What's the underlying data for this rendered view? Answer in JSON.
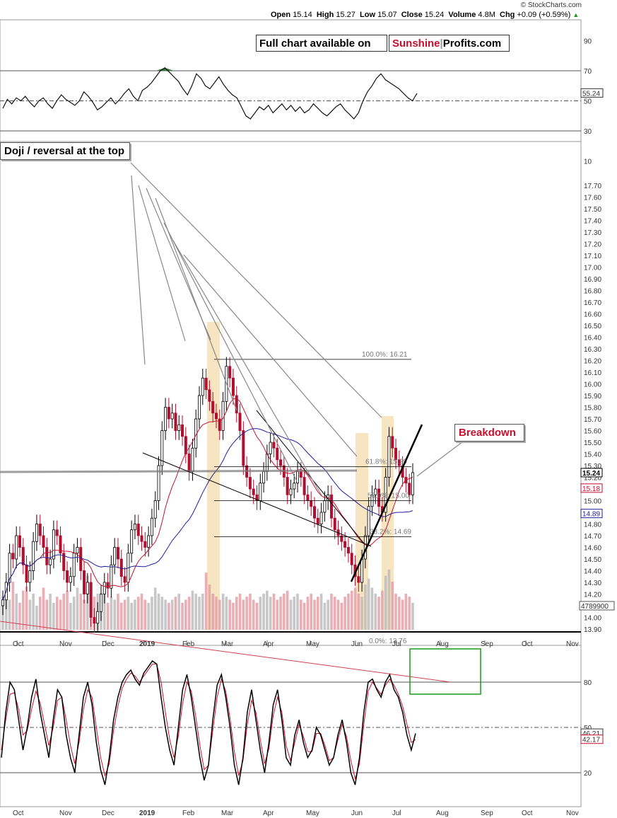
{
  "header": {
    "credit": "© StockCharts.com",
    "open_label": "Open",
    "open": "15.14",
    "high_label": "High",
    "high": "15.27",
    "low_label": "Low",
    "low": "15.07",
    "close_label": "Close",
    "close": "15.24",
    "volume_label": "Volume",
    "volume": "4.8M",
    "chg_label": "Chg",
    "chg": "+0.09 (+0.59%)"
  },
  "banner": {
    "part1": "Full chart available on",
    "part2a": "Sunshine",
    "part2b": "Profits.com"
  },
  "annotations": {
    "doji": "Doji / reversal at the top",
    "breakdown": "Breakdown"
  },
  "colors": {
    "red": "#c8102e",
    "blue": "#1f1fa0",
    "fib_band": "#f5deb3",
    "green_box": "#1a9a1a"
  },
  "chart_data": [
    {
      "panel": "rsi",
      "type": "line",
      "yticks": [
        90,
        70,
        50,
        30,
        10
      ],
      "levels": [
        70,
        50,
        30
      ],
      "last_value": "55.24",
      "series": [
        {
          "values": [
            45,
            51,
            48,
            52,
            50,
            53,
            49,
            46,
            50,
            52,
            48,
            45,
            50,
            54,
            51,
            49,
            47,
            50,
            56,
            53,
            49,
            44,
            46,
            49,
            52,
            48,
            51,
            55,
            58,
            53,
            50,
            57,
            59,
            62,
            66,
            70,
            72,
            69,
            66,
            63,
            58,
            54,
            60,
            68,
            65,
            60,
            58,
            62,
            66,
            61,
            57,
            54,
            52,
            46,
            40,
            38,
            42,
            46,
            44,
            47,
            42,
            45,
            48,
            44,
            47,
            43,
            46,
            42,
            44,
            48,
            45,
            42,
            40,
            43,
            46,
            48,
            44,
            41,
            38,
            42,
            50,
            56,
            60,
            65,
            68,
            64,
            62,
            60,
            58,
            55,
            52,
            50,
            55
          ]
        }
      ]
    },
    {
      "panel": "price",
      "type": "candlestick",
      "yticks": [
        "17.70",
        "17.60",
        "17.50",
        "17.40",
        "17.30",
        "17.20",
        "17.10",
        "17.00",
        "16.90",
        "16.80",
        "16.70",
        "16.60",
        "16.50",
        "16.40",
        "16.30",
        "16.20",
        "16.10",
        "16.00",
        "15.90",
        "15.80",
        "15.70",
        "15.60",
        "15.50",
        "15.40",
        "15.30",
        "15.20",
        "15.10",
        "15.00",
        "14.90",
        "14.80",
        "14.70",
        "14.60",
        "14.50",
        "14.40",
        "14.30",
        "14.20",
        "14.10",
        "14.00",
        "13.90"
      ],
      "xlabels": [
        "Oct",
        "Nov",
        "Dec",
        "2019",
        "Feb",
        "Mar",
        "Apr",
        "May",
        "Jun",
        "Jul",
        "Aug",
        "Sep",
        "Oct",
        "Nov"
      ],
      "last_price": "15.24",
      "ma_short_value": "15.18",
      "ma_long_value": "14.89",
      "volume_last": "4789900",
      "fib_labels": [
        "100.0%: 16.21",
        "61.8%: 15.29",
        "50.0%: 15.00",
        "38.2%: 14.69",
        "0.0%: 13.76"
      ],
      "fib_levels": [
        16.21,
        15.29,
        15.0,
        14.69
      ],
      "closes": [
        14.15,
        14.3,
        14.55,
        14.5,
        14.7,
        14.6,
        14.45,
        14.3,
        14.4,
        14.65,
        14.8,
        14.7,
        14.6,
        14.45,
        14.5,
        14.75,
        14.7,
        14.55,
        14.4,
        14.3,
        14.35,
        14.55,
        14.6,
        14.4,
        14.2,
        14.3,
        14.0,
        13.95,
        14.05,
        14.2,
        14.3,
        14.25,
        14.45,
        14.6,
        14.5,
        14.35,
        14.3,
        14.55,
        14.75,
        14.8,
        14.7,
        14.65,
        14.6,
        14.7,
        14.85,
        15.0,
        15.3,
        15.6,
        15.8,
        15.7,
        15.75,
        15.6,
        15.65,
        15.55,
        15.4,
        15.25,
        15.45,
        15.7,
        15.9,
        16.05,
        15.95,
        15.85,
        15.75,
        15.7,
        15.6,
        15.85,
        16.15,
        16.05,
        15.9,
        15.75,
        15.6,
        15.3,
        15.2,
        15.1,
        15.05,
        15.0,
        15.15,
        15.25,
        15.4,
        15.5,
        15.45,
        15.35,
        15.3,
        15.2,
        15.05,
        15.1,
        15.15,
        15.25,
        15.2,
        15.05,
        15.0,
        14.95,
        14.85,
        14.8,
        14.9,
        15.0,
        15.05,
        14.85,
        14.75,
        14.7,
        14.65,
        14.6,
        14.55,
        14.45,
        14.35,
        14.3,
        14.5,
        14.7,
        14.95,
        15.05,
        15.1,
        14.95,
        14.9,
        15.2,
        15.55,
        15.45,
        15.35,
        15.3,
        15.2,
        15.15,
        15.05,
        15.24
      ],
      "volumes": [
        0.55,
        0.7,
        0.5,
        0.8,
        0.6,
        0.45,
        0.65,
        0.72,
        0.5,
        0.6,
        0.4,
        0.55,
        0.7,
        0.5,
        0.6,
        0.45,
        0.55,
        0.5,
        0.6,
        0.65,
        0.45,
        0.55,
        0.7,
        0.6,
        0.5,
        0.9,
        0.7,
        0.55,
        0.6,
        0.5,
        0.65,
        0.45,
        0.55,
        0.5,
        0.6,
        0.45,
        0.5,
        0.55,
        0.45,
        0.5,
        0.55,
        0.6,
        0.5,
        0.45,
        0.55,
        0.7,
        0.6,
        0.55,
        0.5,
        0.45,
        0.5,
        0.55,
        0.6,
        0.45,
        0.5,
        0.55,
        0.65,
        0.6,
        0.55,
        0.6,
        0.95,
        0.75,
        0.6,
        0.55,
        0.5,
        0.6,
        0.55,
        0.5,
        0.45,
        0.55,
        0.6,
        0.5,
        0.55,
        0.6,
        0.5,
        0.45,
        0.55,
        0.6,
        0.65,
        0.55,
        0.6,
        0.5,
        0.55,
        0.6,
        0.65,
        0.5,
        0.55,
        0.6,
        0.5,
        0.45,
        0.55,
        0.6,
        0.5,
        0.55,
        0.6,
        0.45,
        0.5,
        0.6,
        0.55,
        0.5,
        0.45,
        0.55,
        0.6,
        0.65,
        0.7,
        0.6,
        0.55,
        0.75,
        0.85,
        0.7,
        0.6,
        0.55,
        0.65,
        0.9,
        1.0,
        0.8,
        0.6,
        0.55,
        0.5,
        0.6,
        0.55,
        0.45
      ]
    },
    {
      "panel": "stochastic",
      "type": "line",
      "yticks": [
        80,
        50,
        20
      ],
      "levels": [
        80,
        50,
        20
      ],
      "k_last": "46.21",
      "d_last": "42.17",
      "xlabels": [
        "Oct",
        "Nov",
        "Dec",
        "2019",
        "Feb",
        "Mar",
        "Apr",
        "May",
        "Jun",
        "Jul",
        "Aug",
        "Sep",
        "Oct",
        "Nov"
      ],
      "series": [
        {
          "name": "%K",
          "values": [
            30,
            60,
            80,
            75,
            55,
            35,
            50,
            70,
            82,
            60,
            45,
            30,
            55,
            75,
            70,
            45,
            30,
            20,
            45,
            70,
            80,
            65,
            40,
            22,
            12,
            30,
            55,
            70,
            80,
            85,
            88,
            82,
            78,
            86,
            90,
            94,
            92,
            70,
            50,
            35,
            25,
            50,
            75,
            85,
            70,
            50,
            30,
            15,
            25,
            55,
            78,
            85,
            70,
            50,
            25,
            12,
            30,
            60,
            75,
            55,
            35,
            20,
            40,
            65,
            75,
            55,
            30,
            25,
            45,
            55,
            40,
            30,
            35,
            50,
            45,
            35,
            25,
            30,
            45,
            55,
            40,
            20,
            12,
            30,
            60,
            80,
            82,
            75,
            70,
            80,
            85,
            75,
            70,
            60,
            45,
            35,
            46
          ]
        },
        {
          "name": "%D",
          "values": [
            35,
            55,
            72,
            73,
            62,
            45,
            48,
            62,
            74,
            66,
            52,
            38,
            50,
            68,
            70,
            55,
            38,
            26,
            40,
            62,
            75,
            70,
            50,
            30,
            18,
            26,
            48,
            64,
            76,
            82,
            86,
            84,
            80,
            84,
            88,
            92,
            92,
            80,
            60,
            42,
            30,
            44,
            66,
            80,
            74,
            58,
            38,
            22,
            25,
            48,
            70,
            82,
            74,
            56,
            34,
            18,
            28,
            52,
            68,
            60,
            42,
            26,
            36,
            58,
            70,
            60,
            38,
            28,
            40,
            52,
            44,
            34,
            34,
            46,
            46,
            38,
            28,
            30,
            42,
            52,
            44,
            28,
            16,
            26,
            52,
            74,
            80,
            76,
            72,
            78,
            82,
            78,
            72,
            64,
            52,
            40,
            42
          ]
        }
      ]
    }
  ]
}
